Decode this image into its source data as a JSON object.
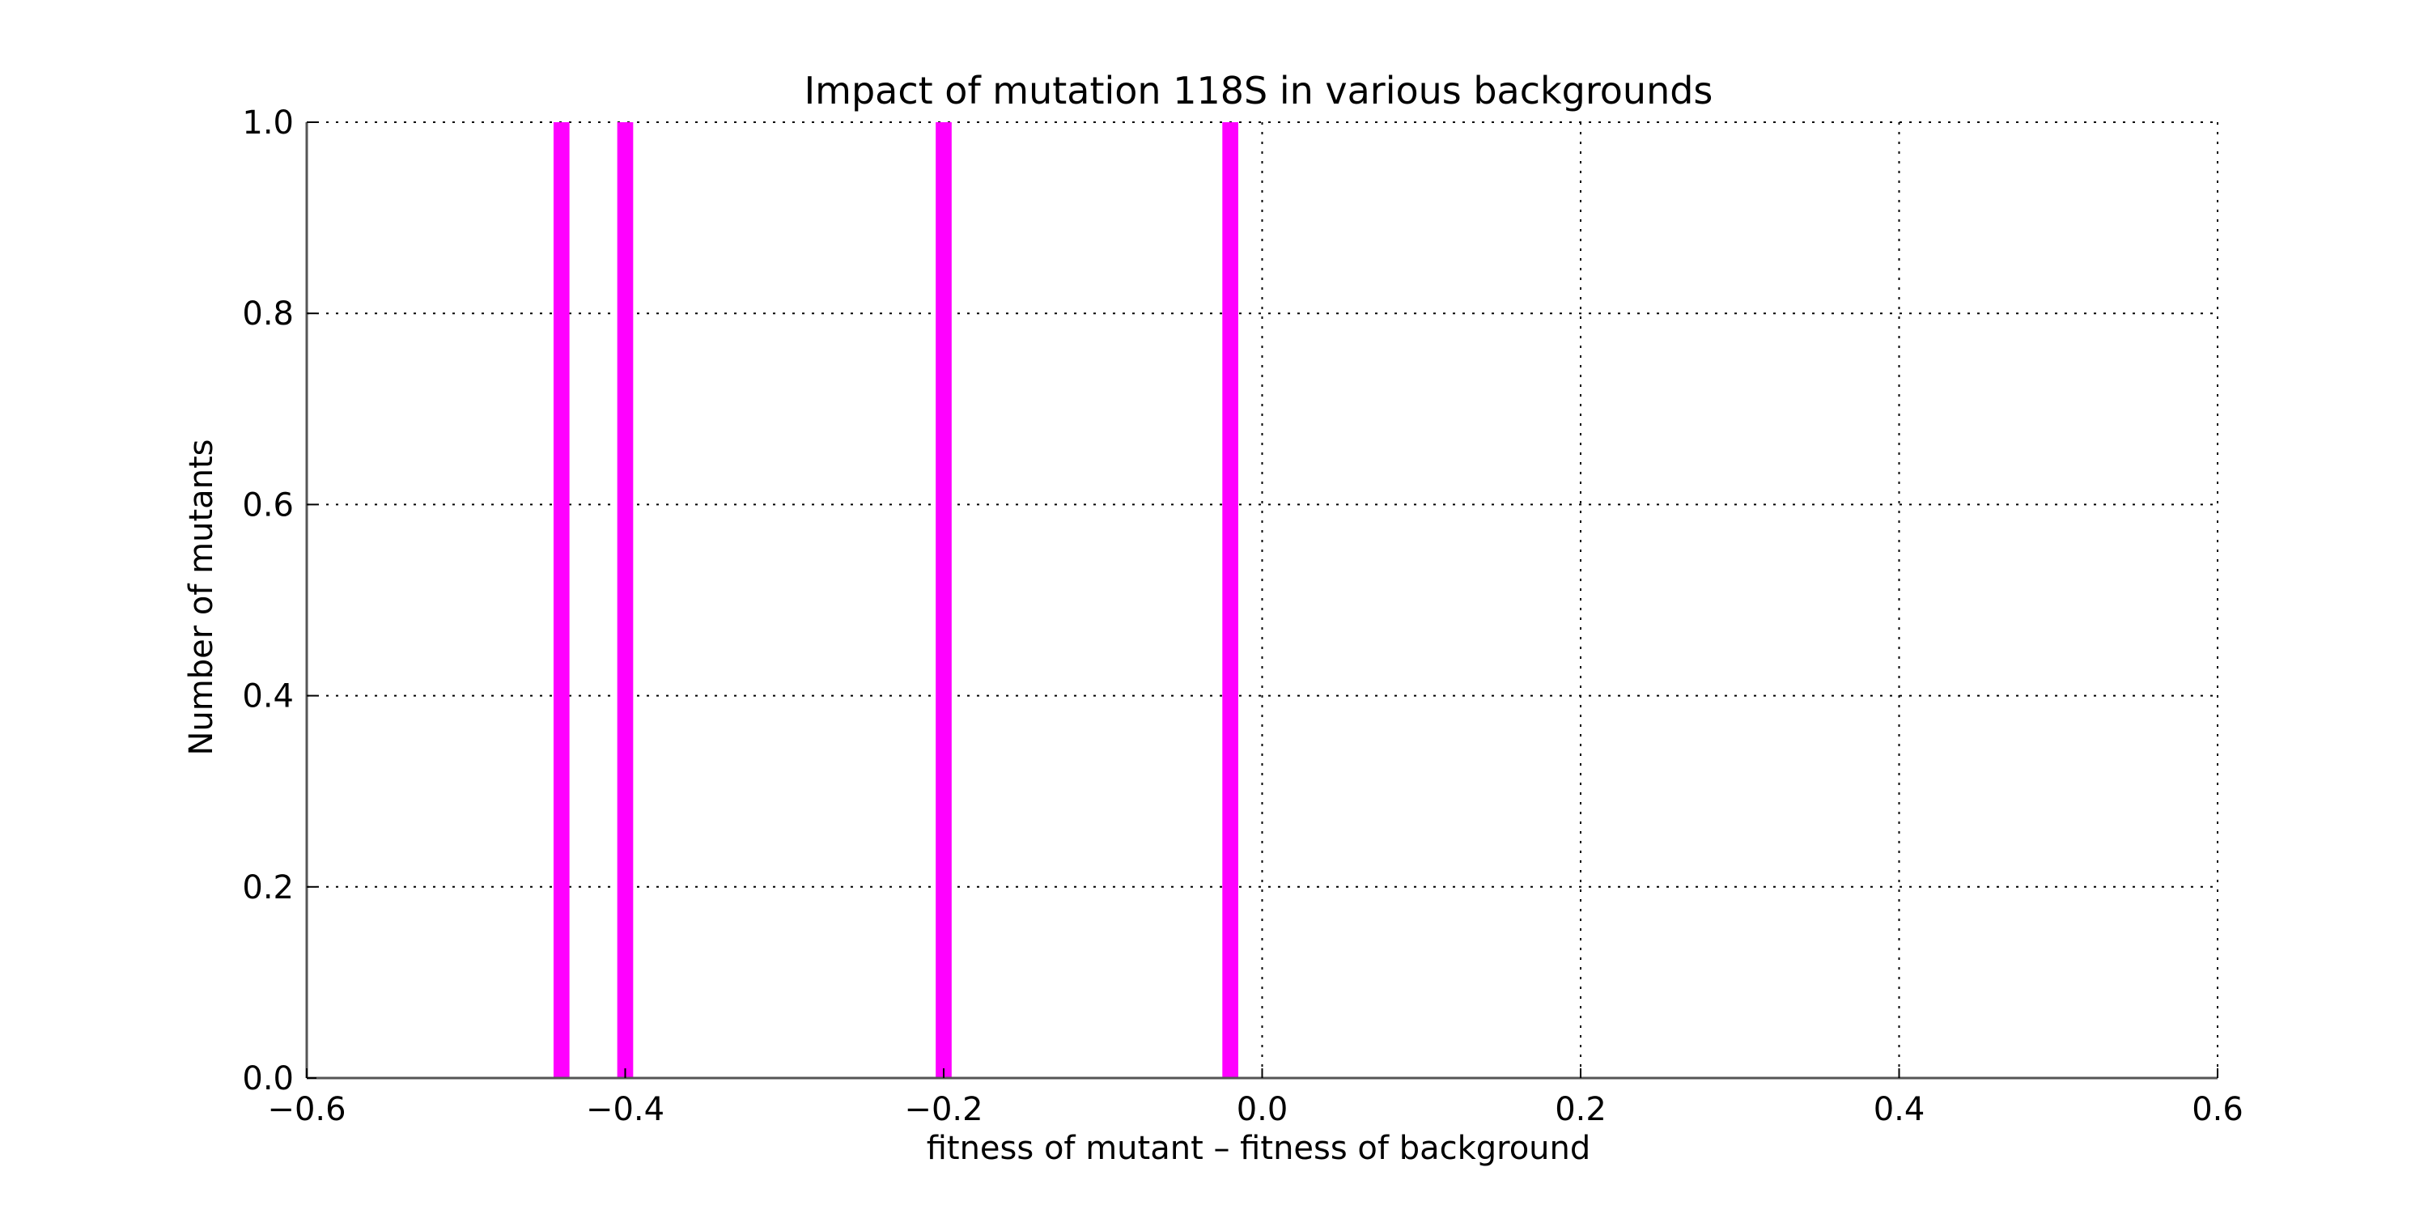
{
  "chart_data": {
    "type": "bar",
    "title": "Impact of mutation 118S in various backgrounds",
    "xlabel": "fitness of mutant  –  fitness of background",
    "ylabel": "Number of mutants",
    "xlim": [
      -0.6,
      0.6
    ],
    "ylim": [
      0.0,
      1.0
    ],
    "x_ticks": [
      -0.6,
      -0.4,
      -0.2,
      0.0,
      0.2,
      0.4,
      0.6
    ],
    "x_tick_labels": [
      "−0.6",
      "−0.4",
      "−0.2",
      "0.0",
      "0.2",
      "0.4",
      "0.6"
    ],
    "y_ticks": [
      0.0,
      0.2,
      0.4,
      0.6,
      0.8,
      1.0
    ],
    "y_tick_labels": [
      "0.0",
      "0.2",
      "0.4",
      "0.6",
      "0.8",
      "1.0"
    ],
    "grid": true,
    "bar_color": "#ff00ff",
    "bin_width": 0.01,
    "bars": [
      {
        "x": -0.44,
        "count": 1
      },
      {
        "x": -0.4,
        "count": 1
      },
      {
        "x": -0.2,
        "count": 1
      },
      {
        "x": -0.02,
        "count": 1
      }
    ]
  }
}
